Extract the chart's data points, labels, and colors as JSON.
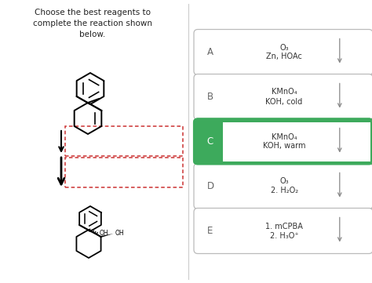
{
  "title_text": "Choose the best reagents to\ncomplete the reaction shown\nbelow.",
  "options": [
    {
      "label": "A",
      "line1": "O₃",
      "line2": "Zn, HOAc",
      "correct": false
    },
    {
      "label": "B",
      "line1": "KMnO₄",
      "line2": "KOH, cold",
      "correct": false
    },
    {
      "label": "C",
      "line1": "KMnO₄",
      "line2": "KOH, warm",
      "correct": true
    },
    {
      "label": "D",
      "line1": "O₃",
      "line2": "2. H₂O₂",
      "correct": false
    },
    {
      "label": "E",
      "line1": "1. mCPBA",
      "line2": "2. H₃O⁺",
      "correct": false
    }
  ],
  "correct_color": "#3daa5c",
  "correct_border": "#3daa5c",
  "normal_border": "#bbbbbb",
  "bg_color": "#ffffff",
  "text_color": "#333333",
  "label_color": "#666666",
  "arrow_color": "#888888",
  "dashed_rect_color": "#cc3333",
  "font_size_title": 7.5,
  "font_size_option": 7.0,
  "font_size_label": 8.5
}
